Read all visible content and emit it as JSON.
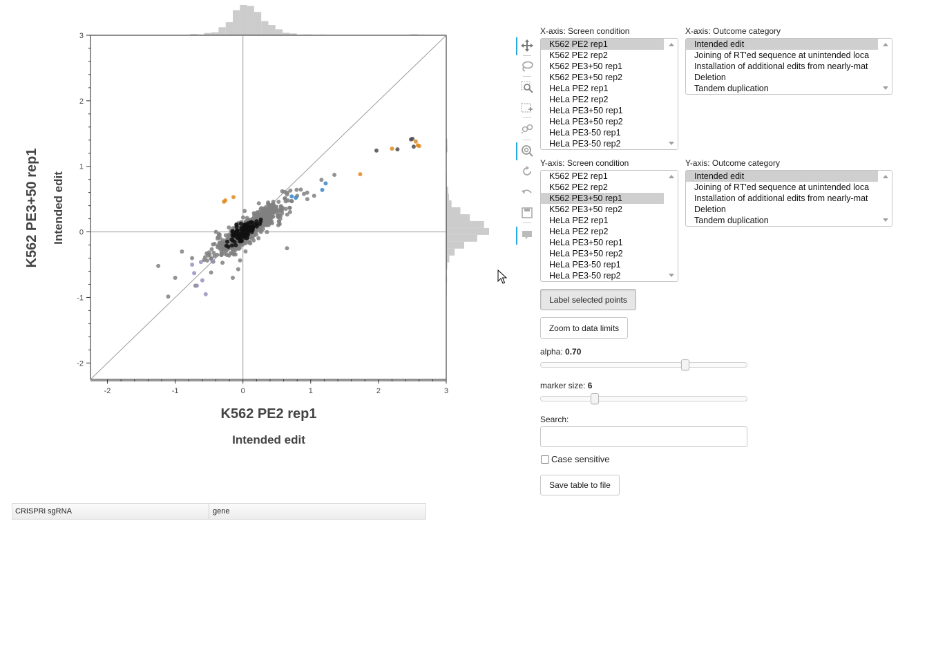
{
  "plot": {
    "x_title": "K562 PE2 rep1",
    "x_subtitle": "Intended edit",
    "y_title": "K562 PE3+50 rep1",
    "y_subtitle": "Intended edit"
  },
  "chart_data": {
    "type": "scatter",
    "xlim": [
      -2.25,
      3
    ],
    "ylim": [
      -2.25,
      3
    ],
    "x_ticks": [
      "-2",
      "-1",
      "0",
      "1",
      "2",
      "3"
    ],
    "y_ticks": [
      "-2",
      "-1",
      "0",
      "1",
      "2",
      "3"
    ],
    "diagonal": true,
    "zero_lines": true,
    "colors": {
      "gray": "#808080",
      "black": "#111111",
      "dark": "#4d4d4d",
      "orange": "#e08a1e",
      "blue": "#3a86c8",
      "purple": "#9a8fbd"
    },
    "points": {
      "orange": [
        [
          -0.28,
          0.46
        ],
        [
          -0.26,
          0.48
        ],
        [
          -0.14,
          0.53
        ],
        [
          1.73,
          0.88
        ],
        [
          2.2,
          1.27
        ],
        [
          2.55,
          1.38
        ],
        [
          2.58,
          1.32
        ],
        [
          2.6,
          1.31
        ]
      ],
      "blue": [
        [
          0.72,
          0.54
        ],
        [
          0.78,
          0.52
        ],
        [
          1.17,
          0.64
        ],
        [
          1.22,
          0.74
        ]
      ],
      "dark": [
        [
          1.97,
          1.24
        ],
        [
          2.28,
          1.26
        ],
        [
          2.48,
          1.41
        ],
        [
          2.5,
          1.42
        ],
        [
          2.52,
          1.3
        ]
      ],
      "purple": [
        [
          -0.75,
          -0.5
        ],
        [
          -0.72,
          -0.63
        ],
        [
          -0.68,
          -0.82
        ],
        [
          -0.6,
          -0.74
        ],
        [
          -0.55,
          -0.95
        ],
        [
          -0.62,
          -0.46
        ],
        [
          -0.45,
          -0.45
        ]
      ],
      "gray_extra": [
        [
          -1.25,
          -0.52
        ],
        [
          -1.0,
          -0.7
        ],
        [
          -0.9,
          -0.3
        ],
        [
          -0.75,
          -0.4
        ],
        [
          -0.47,
          -0.62
        ],
        [
          -0.15,
          -0.7
        ],
        [
          -0.07,
          -0.57
        ],
        [
          1.35,
          0.87
        ],
        [
          1.05,
          0.55
        ],
        [
          0.65,
          0.57
        ],
        [
          0.58,
          0.62
        ],
        [
          0.7,
          0.63
        ],
        [
          0.8,
          0.55
        ],
        [
          0.9,
          0.58
        ],
        [
          0.65,
          -0.25
        ],
        [
          0.95,
          0.5
        ],
        [
          0.55,
          0.2
        ]
      ]
    },
    "cloud": {
      "center": [
        0.1,
        0.05
      ],
      "count": 620,
      "seed": 7
    }
  },
  "marginals": {
    "top_label": "",
    "right_label": ""
  },
  "toolbar": {
    "tools": [
      "pan-icon",
      "lasso-select-icon",
      "box-zoom-icon",
      "box-select-icon",
      "crosshair-icon",
      "wheel-zoom-icon",
      "reset-icon",
      "undo-icon",
      "save-icon",
      "hover-icon"
    ]
  },
  "x_axis_condition": {
    "label": "X-axis: Screen condition",
    "options": [
      "K562 PE2 rep1",
      "K562 PE2 rep2",
      "K562 PE3+50 rep1",
      "K562 PE3+50 rep2",
      "HeLa PE2 rep1",
      "HeLa PE2 rep2",
      "HeLa PE3+50 rep1",
      "HeLa PE3+50 rep2",
      "HeLa PE3-50 rep1",
      "HeLa PE3-50 rep2"
    ],
    "selected": "K562 PE2 rep1"
  },
  "x_axis_outcome": {
    "label": "X-axis: Outcome category",
    "options": [
      "Intended edit",
      "Joining of RT'ed sequence at unintended loca",
      "Installation of additional edits from nearly-mat",
      "Deletion",
      "Tandem duplication"
    ],
    "selected": "Intended edit"
  },
  "y_axis_condition": {
    "label": "Y-axis: Screen condition",
    "options": [
      "K562 PE2 rep1",
      "K562 PE2 rep2",
      "K562 PE3+50 rep1",
      "K562 PE3+50 rep2",
      "HeLa PE2 rep1",
      "HeLa PE2 rep2",
      "HeLa PE3+50 rep1",
      "HeLa PE3+50 rep2",
      "HeLa PE3-50 rep1",
      "HeLa PE3-50 rep2"
    ],
    "selected": "K562 PE3+50 rep1"
  },
  "y_axis_outcome": {
    "label": "Y-axis: Outcome category",
    "options": [
      "Intended edit",
      "Joining of RT'ed sequence at unintended loca",
      "Installation of additional edits from nearly-mat",
      "Deletion",
      "Tandem duplication"
    ],
    "selected": "Intended edit"
  },
  "buttons": {
    "label_selected": "Label selected points",
    "zoom_limits": "Zoom to data limits",
    "save_table": "Save table to file"
  },
  "alpha": {
    "label": "alpha: ",
    "value_text": "0.70",
    "value": 0.7,
    "min": 0,
    "max": 1
  },
  "marker_size": {
    "label": "marker size: ",
    "value_text": "6",
    "value": 6,
    "min": 1,
    "max": 20
  },
  "search": {
    "label": "Search:",
    "value": ""
  },
  "case_sensitive": {
    "label": "Case sensitive",
    "checked": false
  },
  "table": {
    "columns": [
      "CRISPRi sgRNA",
      "gene"
    ]
  }
}
